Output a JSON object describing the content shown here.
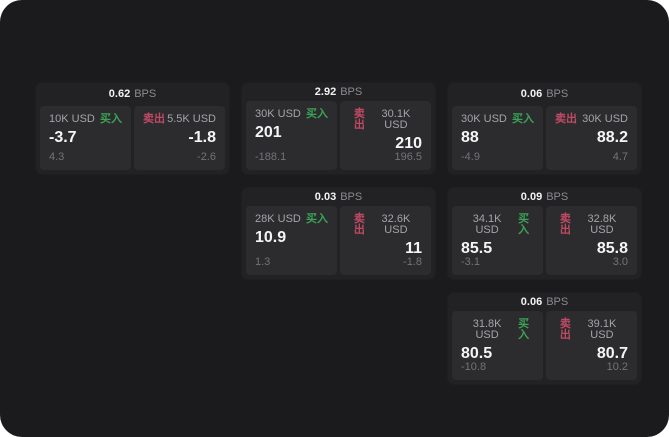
{
  "labels": {
    "bps_suffix": "BPS",
    "buy": "买入",
    "sell": "卖出"
  },
  "colors": {
    "buy": "#3aa356",
    "sell": "#c04a64",
    "surface": "#1b1b1d",
    "card": "#222224",
    "panel": "#2c2c2e"
  },
  "cards": [
    {
      "bps": "0.62",
      "col": 1,
      "row": 1,
      "buy": {
        "size": "10K USD",
        "price": "-3.7",
        "delta": "4.3"
      },
      "sell": {
        "size": "5.5K USD",
        "price": "-1.8",
        "delta": "-2.6"
      }
    },
    {
      "bps": "2.92",
      "col": 2,
      "row": 1,
      "buy": {
        "size": "30K USD",
        "price": "201",
        "delta": "-188.1"
      },
      "sell": {
        "size": "30.1K USD",
        "price": "210",
        "delta": "196.5"
      }
    },
    {
      "bps": "0.06",
      "col": 3,
      "row": 1,
      "buy": {
        "size": "30K USD",
        "price": "88",
        "delta": "-4.9"
      },
      "sell": {
        "size": "30K USD",
        "price": "88.2",
        "delta": "4.7"
      }
    },
    {
      "bps": "0.03",
      "col": 2,
      "row": 2,
      "buy": {
        "size": "28K USD",
        "price": "10.9",
        "delta": "1.3"
      },
      "sell": {
        "size": "32.6K USD",
        "price": "11",
        "delta": "-1.8"
      }
    },
    {
      "bps": "0.09",
      "col": 3,
      "row": 2,
      "buy": {
        "size": "34.1K USD",
        "price": "85.5",
        "delta": "-3.1"
      },
      "sell": {
        "size": "32.8K USD",
        "price": "85.8",
        "delta": "3.0"
      }
    },
    {
      "bps": "0.06",
      "col": 3,
      "row": 3,
      "buy": {
        "size": "31.8K USD",
        "price": "80.5",
        "delta": "-10.8"
      },
      "sell": {
        "size": "39.1K USD",
        "price": "80.7",
        "delta": "10.2"
      }
    }
  ]
}
